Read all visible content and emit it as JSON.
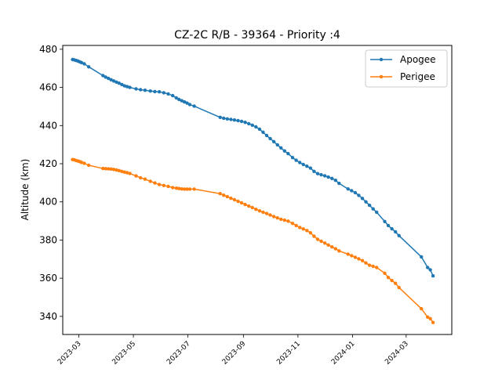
{
  "chart_data": {
    "type": "line",
    "title": "CZ-2C R/B - 39364 - Priority :4",
    "xlabel": "",
    "ylabel": "Altitude (km)",
    "x_type": "date",
    "xlim": [
      "2023-02-11",
      "2024-04-21"
    ],
    "ylim": [
      330.5,
      482
    ],
    "grid": false,
    "legend_position": "top-right",
    "x_ticks": [
      "2023-03",
      "2023-05",
      "2023-07",
      "2023-09",
      "2023-11",
      "2024-01",
      "2024-03"
    ],
    "y_ticks": [
      340,
      360,
      380,
      400,
      420,
      440,
      460,
      480
    ],
    "series": [
      {
        "name": "Apogee",
        "color": "#1f77b4",
        "marker": "circle",
        "points": [
          [
            "2023-02-22",
            474.6
          ],
          [
            "2023-02-24",
            474.4
          ],
          [
            "2023-02-26",
            474.1
          ],
          [
            "2023-02-28",
            473.8
          ],
          [
            "2023-03-02",
            473.4
          ],
          [
            "2023-03-04",
            473.0
          ],
          [
            "2023-03-07",
            472.4
          ],
          [
            "2023-03-12",
            470.8
          ],
          [
            "2023-03-28",
            466.2
          ],
          [
            "2023-03-31",
            465.4
          ],
          [
            "2023-04-03",
            464.7
          ],
          [
            "2023-04-06",
            464.0
          ],
          [
            "2023-04-09",
            463.4
          ],
          [
            "2023-04-12",
            462.8
          ],
          [
            "2023-04-15",
            462.2
          ],
          [
            "2023-04-18",
            461.5
          ],
          [
            "2023-04-21",
            460.8
          ],
          [
            "2023-04-24",
            460.4
          ],
          [
            "2023-04-27",
            460.0
          ],
          [
            "2023-05-04",
            459.2
          ],
          [
            "2023-05-09",
            458.8
          ],
          [
            "2023-05-14",
            458.5
          ],
          [
            "2023-05-20",
            458.1
          ],
          [
            "2023-05-25",
            457.8
          ],
          [
            "2023-05-30",
            457.7
          ],
          [
            "2023-06-04",
            457.2
          ],
          [
            "2023-06-09",
            456.6
          ],
          [
            "2023-06-14",
            455.7
          ],
          [
            "2023-06-18",
            454.5
          ],
          [
            "2023-06-21",
            453.7
          ],
          [
            "2023-06-24",
            453.0
          ],
          [
            "2023-06-27",
            452.4
          ],
          [
            "2023-06-30",
            451.8
          ],
          [
            "2023-07-03",
            451.0
          ],
          [
            "2023-07-08",
            450.2
          ],
          [
            "2023-08-06",
            444.3
          ],
          [
            "2023-08-10",
            443.8
          ],
          [
            "2023-08-14",
            443.5
          ],
          [
            "2023-08-18",
            443.2
          ],
          [
            "2023-08-22",
            442.9
          ],
          [
            "2023-08-26",
            442.6
          ],
          [
            "2023-08-30",
            442.2
          ],
          [
            "2023-09-03",
            441.7
          ],
          [
            "2023-09-07",
            441.0
          ],
          [
            "2023-09-11",
            440.2
          ],
          [
            "2023-09-15",
            439.3
          ],
          [
            "2023-09-19",
            438.1
          ],
          [
            "2023-09-23",
            436.5
          ],
          [
            "2023-09-27",
            434.8
          ],
          [
            "2023-10-01",
            433.2
          ],
          [
            "2023-10-05",
            431.6
          ],
          [
            "2023-10-09",
            429.9
          ],
          [
            "2023-10-13",
            428.3
          ],
          [
            "2023-10-17",
            426.7
          ],
          [
            "2023-10-21",
            425.3
          ],
          [
            "2023-10-26",
            423.2
          ],
          [
            "2023-10-30",
            421.8
          ],
          [
            "2023-11-03",
            420.6
          ],
          [
            "2023-11-07",
            419.6
          ],
          [
            "2023-11-11",
            418.7
          ],
          [
            "2023-11-15",
            417.7
          ],
          [
            "2023-11-19",
            416.0
          ],
          [
            "2023-11-23",
            414.8
          ],
          [
            "2023-11-27",
            414.2
          ],
          [
            "2023-12-01",
            413.7
          ],
          [
            "2023-12-05",
            413.0
          ],
          [
            "2023-12-09",
            412.3
          ],
          [
            "2023-12-13",
            411.3
          ],
          [
            "2023-12-17",
            409.7
          ],
          [
            "2023-12-27",
            406.8
          ],
          [
            "2023-12-31",
            405.9
          ],
          [
            "2024-01-04",
            404.8
          ],
          [
            "2024-01-08",
            403.4
          ],
          [
            "2024-01-12",
            401.8
          ],
          [
            "2024-01-16",
            400.0
          ],
          [
            "2024-01-20",
            398.2
          ],
          [
            "2024-01-24",
            396.3
          ],
          [
            "2024-01-28",
            394.6
          ],
          [
            "2024-02-06",
            389.7
          ],
          [
            "2024-02-10",
            387.6
          ],
          [
            "2024-02-14",
            385.9
          ],
          [
            "2024-02-18",
            384.3
          ],
          [
            "2024-02-22",
            382.3
          ],
          [
            "2024-03-18",
            371.2
          ],
          [
            "2024-03-25",
            365.6
          ],
          [
            "2024-03-28",
            364.4
          ],
          [
            "2024-03-31",
            361.2
          ]
        ]
      },
      {
        "name": "Perigee",
        "color": "#ff7f0e",
        "marker": "circle",
        "points": [
          [
            "2023-02-22",
            422.2
          ],
          [
            "2023-02-24",
            422.0
          ],
          [
            "2023-02-26",
            421.7
          ],
          [
            "2023-02-28",
            421.4
          ],
          [
            "2023-03-02",
            421.1
          ],
          [
            "2023-03-04",
            420.7
          ],
          [
            "2023-03-07",
            420.2
          ],
          [
            "2023-03-12",
            419.2
          ],
          [
            "2023-03-28",
            417.5
          ],
          [
            "2023-03-31",
            417.4
          ],
          [
            "2023-04-03",
            417.3
          ],
          [
            "2023-04-06",
            417.2
          ],
          [
            "2023-04-09",
            417.0
          ],
          [
            "2023-04-12",
            416.7
          ],
          [
            "2023-04-15",
            416.4
          ],
          [
            "2023-04-18",
            416.0
          ],
          [
            "2023-04-21",
            415.6
          ],
          [
            "2023-04-24",
            415.3
          ],
          [
            "2023-04-27",
            414.9
          ],
          [
            "2023-05-04",
            413.6
          ],
          [
            "2023-05-09",
            412.6
          ],
          [
            "2023-05-14",
            411.9
          ],
          [
            "2023-05-20",
            410.8
          ],
          [
            "2023-05-25",
            409.9
          ],
          [
            "2023-05-30",
            409.1
          ],
          [
            "2023-06-04",
            408.6
          ],
          [
            "2023-06-09",
            408.1
          ],
          [
            "2023-06-14",
            407.5
          ],
          [
            "2023-06-18",
            407.2
          ],
          [
            "2023-06-21",
            407.0
          ],
          [
            "2023-06-24",
            406.8
          ],
          [
            "2023-06-27",
            406.7
          ],
          [
            "2023-06-30",
            406.7
          ],
          [
            "2023-07-03",
            406.7
          ],
          [
            "2023-07-08",
            406.7
          ],
          [
            "2023-08-06",
            404.3
          ],
          [
            "2023-08-10",
            403.5
          ],
          [
            "2023-08-14",
            402.7
          ],
          [
            "2023-08-18",
            401.9
          ],
          [
            "2023-08-22",
            401.1
          ],
          [
            "2023-08-26",
            400.3
          ],
          [
            "2023-08-30",
            399.5
          ],
          [
            "2023-09-03",
            398.6
          ],
          [
            "2023-09-07",
            397.8
          ],
          [
            "2023-09-11",
            397.0
          ],
          [
            "2023-09-15",
            396.1
          ],
          [
            "2023-09-19",
            395.3
          ],
          [
            "2023-09-23",
            394.6
          ],
          [
            "2023-09-27",
            393.9
          ],
          [
            "2023-10-01",
            393.1
          ],
          [
            "2023-10-05",
            392.3
          ],
          [
            "2023-10-09",
            391.6
          ],
          [
            "2023-10-13",
            390.9
          ],
          [
            "2023-10-17",
            390.4
          ],
          [
            "2023-10-21",
            389.9
          ],
          [
            "2023-10-26",
            388.7
          ],
          [
            "2023-10-30",
            387.6
          ],
          [
            "2023-11-03",
            386.6
          ],
          [
            "2023-11-07",
            385.8
          ],
          [
            "2023-11-11",
            385.0
          ],
          [
            "2023-11-15",
            383.8
          ],
          [
            "2023-11-19",
            382.0
          ],
          [
            "2023-11-23",
            380.4
          ],
          [
            "2023-11-27",
            379.4
          ],
          [
            "2023-12-01",
            378.4
          ],
          [
            "2023-12-05",
            377.4
          ],
          [
            "2023-12-09",
            376.4
          ],
          [
            "2023-12-13",
            375.4
          ],
          [
            "2023-12-17",
            374.3
          ],
          [
            "2023-12-27",
            372.6
          ],
          [
            "2023-12-31",
            371.8
          ],
          [
            "2024-01-04",
            371.0
          ],
          [
            "2024-01-08",
            370.1
          ],
          [
            "2024-01-12",
            369.2
          ],
          [
            "2024-01-16",
            368.0
          ],
          [
            "2024-01-20",
            366.8
          ],
          [
            "2024-01-24",
            366.2
          ],
          [
            "2024-01-28",
            365.6
          ],
          [
            "2024-02-06",
            362.6
          ],
          [
            "2024-02-10",
            360.4
          ],
          [
            "2024-02-14",
            358.8
          ],
          [
            "2024-02-18",
            357.3
          ],
          [
            "2024-02-22",
            355.1
          ],
          [
            "2024-03-18",
            344.0
          ],
          [
            "2024-03-25",
            339.6
          ],
          [
            "2024-03-28",
            338.8
          ],
          [
            "2024-03-31",
            336.8
          ]
        ]
      }
    ]
  }
}
